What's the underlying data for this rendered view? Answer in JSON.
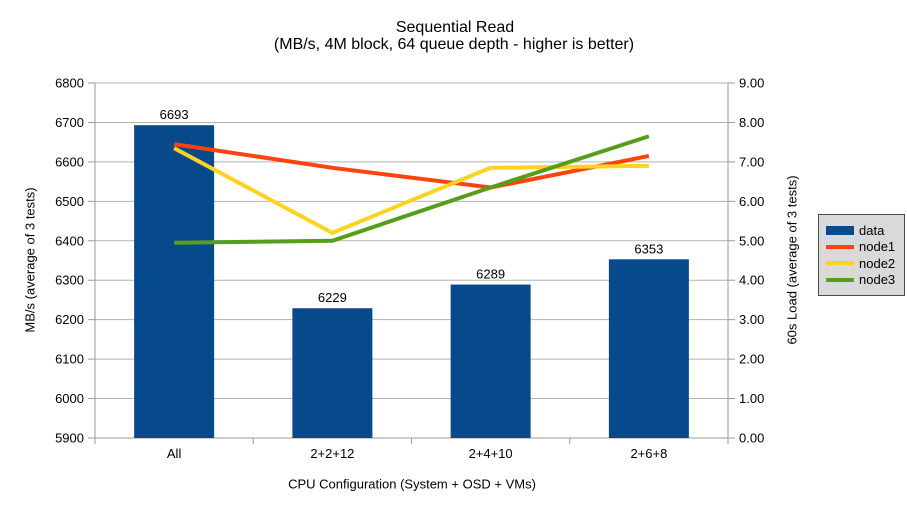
{
  "title": "Sequential Read",
  "subtitle": "(MB/s, 4M block, 64 queue depth - higher is better)",
  "chart_data": {
    "type": "bar",
    "note": "combo chart: one bar series on left axis, three line series on right axis",
    "categories": [
      "All",
      "2+2+12",
      "2+4+10",
      "2+6+8"
    ],
    "series": [
      {
        "name": "data",
        "kind": "bar",
        "axis": "left",
        "color": "#064a8c",
        "values": [
          6693,
          6229,
          6289,
          6353
        ],
        "value_labels": [
          "6693",
          "6229",
          "6289",
          "6353"
        ]
      },
      {
        "name": "node1",
        "kind": "line",
        "axis": "right",
        "color": "#ff420e",
        "values": [
          7.45,
          6.85,
          6.35,
          7.15
        ]
      },
      {
        "name": "node2",
        "kind": "line",
        "axis": "right",
        "color": "#ffd320",
        "values": [
          7.35,
          5.2,
          6.85,
          6.9
        ]
      },
      {
        "name": "node3",
        "kind": "line",
        "axis": "right",
        "color": "#579d1c",
        "values": [
          4.95,
          5.0,
          6.35,
          7.65
        ]
      }
    ],
    "left_axis": {
      "label": "MB/s (average of 3 tests)",
      "min": 5900,
      "max": 6800,
      "step": 100,
      "ticks": [
        "6800",
        "6700",
        "6600",
        "6500",
        "6400",
        "6300",
        "6200",
        "6100",
        "6000",
        "5900"
      ]
    },
    "right_axis": {
      "label": "60s Load (average of 3 tests)",
      "min": 0,
      "max": 9,
      "step": 1,
      "ticks": [
        "9.00",
        "8.00",
        "7.00",
        "6.00",
        "5.00",
        "4.00",
        "3.00",
        "2.00",
        "1.00",
        "0.00"
      ]
    },
    "x_axis": {
      "label": "CPU Configuration (System + OSD + VMs)"
    },
    "legend": {
      "position": "right",
      "entries": [
        "data",
        "node1",
        "node2",
        "node3"
      ]
    },
    "grid": true,
    "colors": {
      "background": "#ffffff",
      "gridline": "#b3b3b3",
      "axis": "#999999",
      "text": "#000000",
      "legend_bg": "#d9d9d9",
      "legend_border": "#4d4d4d"
    }
  }
}
